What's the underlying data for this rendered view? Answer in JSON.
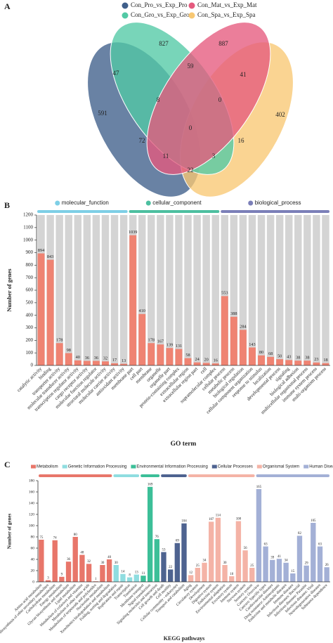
{
  "chart_data": [
    {
      "type": "venn",
      "panel_label": "A",
      "sets": [
        {
          "name": "Con_Pro_vs_Exp_Pro",
          "color": "#3f5f8a"
        },
        {
          "name": "Con_Mat_vs_Exp_Mat",
          "color": "#e55a7e"
        },
        {
          "name": "Con_Gro_vs_Exp_Gro",
          "color": "#52c9a5"
        },
        {
          "name": "Con_Spa_vs_Exp_Spa",
          "color": "#f8c873"
        }
      ],
      "values": [
        827,
        887,
        47,
        59,
        41,
        591,
        8,
        0,
        402,
        0,
        72,
        16,
        11,
        3,
        22
      ]
    },
    {
      "type": "bar",
      "panel_label": "B",
      "xlabel": "GO term",
      "ylabel": "Number of genes",
      "ylim": [
        0,
        1200
      ],
      "yticks": [
        0,
        100,
        200,
        300,
        400,
        500,
        600,
        700,
        800,
        900,
        1000,
        1100,
        1200
      ],
      "bar_color": "#ef8372",
      "background_bars": true,
      "legend_marker": "circle",
      "groups": [
        {
          "name": "molecular_function",
          "color": "#7ecfe6",
          "categories": [
            "catalytic activity",
            "binding",
            "transporter activity",
            "molecular transducer activity",
            "transcription regulator activity",
            "cargo receptor activity",
            "molecular function regulator",
            "structural molecule activity",
            "molecular carrier activity",
            "antioxidant activity"
          ],
          "values": [
            894,
            843,
            178,
            98,
            40,
            36,
            36,
            32,
            17,
            13
          ]
        },
        {
          "name": "cellular_component",
          "color": "#4dbfa0",
          "categories": [
            "membrane part",
            "cell part",
            "membrane",
            "organelle",
            "organelle part",
            "protein-containing complex",
            "extracellular region",
            "extracellular region part",
            "cell",
            "supramolecular complex"
          ],
          "values": [
            1039,
            410,
            178,
            167,
            139,
            131,
            58,
            24,
            20,
            16
          ]
        },
        {
          "name": "biological_process",
          "color": "#7b7fb8",
          "categories": [
            "cellular process",
            "metabolic process",
            "biological regulation",
            "cellular component organization",
            "response to stimulus",
            "localization",
            "developmental process",
            "signaling",
            "biological adhesion",
            "multicellular organismal process",
            "immune system process",
            "multi-organism process"
          ],
          "values": [
            553,
            388,
            284,
            143,
            80,
            68,
            50,
            43,
            38,
            38,
            23,
            18
          ]
        }
      ]
    },
    {
      "type": "bar",
      "panel_label": "C",
      "xlabel": "KEGG pathways",
      "ylabel": "Number of genes",
      "ylim": [
        0,
        180
      ],
      "yticks": [
        0,
        20,
        40,
        60,
        80,
        100,
        120,
        140,
        160,
        180
      ],
      "background_bars": false,
      "legend_marker": "square",
      "groups": [
        {
          "name": "Metabolism",
          "color": "#e8766a",
          "categories": [
            "Amino acid metabolism",
            "Biosynthesis of other secondary metabolites",
            "Carbohydrate metabolism",
            "Energy metabolism",
            "Glycan biosynthesis and metabolism",
            "Lipid metabolism",
            "Metabolism of cofactors and vitamins",
            "Metabolism of other amino acids",
            "Metabolism of terpenoids and polyketides",
            "Nucleotide metabolism",
            "Xenobiotics biodegradation and metabolism"
          ],
          "values": [
            75,
            3,
            74,
            9,
            36,
            80,
            48,
            32,
            1,
            30,
            40
          ]
        },
        {
          "name": "Genetic Information Processing",
          "color": "#8fdde0",
          "categories": [
            "Folding, sorting and degradation",
            "Replication and repair",
            "Transcription",
            "Translation"
          ],
          "values": [
            30,
            14,
            8,
            13
          ]
        },
        {
          "name": "Environmental Information Processing",
          "color": "#3cbf98",
          "categories": [
            "Membrane transport",
            "Signal transduction",
            "Signaling molecules and interaction"
          ],
          "values": [
            11,
            169,
            76
          ]
        },
        {
          "name": "Cellular Processes",
          "color": "#4e6390",
          "categories": [
            "Cell growth and death",
            "Cell motility",
            "Cellular community - eukaryotes",
            "Transport and catabolism"
          ],
          "values": [
            53,
            22,
            69,
            104
          ]
        },
        {
          "name": "Organismal System",
          "color": "#f4b3a6",
          "categories": [
            "Aging",
            "Circulatory system",
            "Development",
            "Digestive system",
            "Endocrine system",
            "Environmental adaptation",
            "Excretory system",
            "Immune system",
            "Nervous system",
            "Sensory system"
          ],
          "values": [
            12,
            25,
            34,
            107,
            114,
            30,
            10,
            108,
            56,
            25
          ]
        },
        {
          "name": "Human Diseases",
          "color": "#a3b0d6",
          "categories": [
            "Cancers: Overview",
            "Cancers: Specific types",
            "Cardiovascular diseases",
            "Drug resistance: Antineoplastic",
            "Endocrine and metabolic diseases",
            "Immune diseases",
            "Infectious diseases: Bacterial",
            "Infectious diseases: Parasitic",
            "Infectious diseases: Viral",
            "Neurodegenerative diseases",
            "Substance dependence"
          ],
          "values": [
            165,
            63,
            39,
            41,
            34,
            15,
            82,
            29,
            105,
            63,
            26
          ]
        }
      ]
    }
  ]
}
